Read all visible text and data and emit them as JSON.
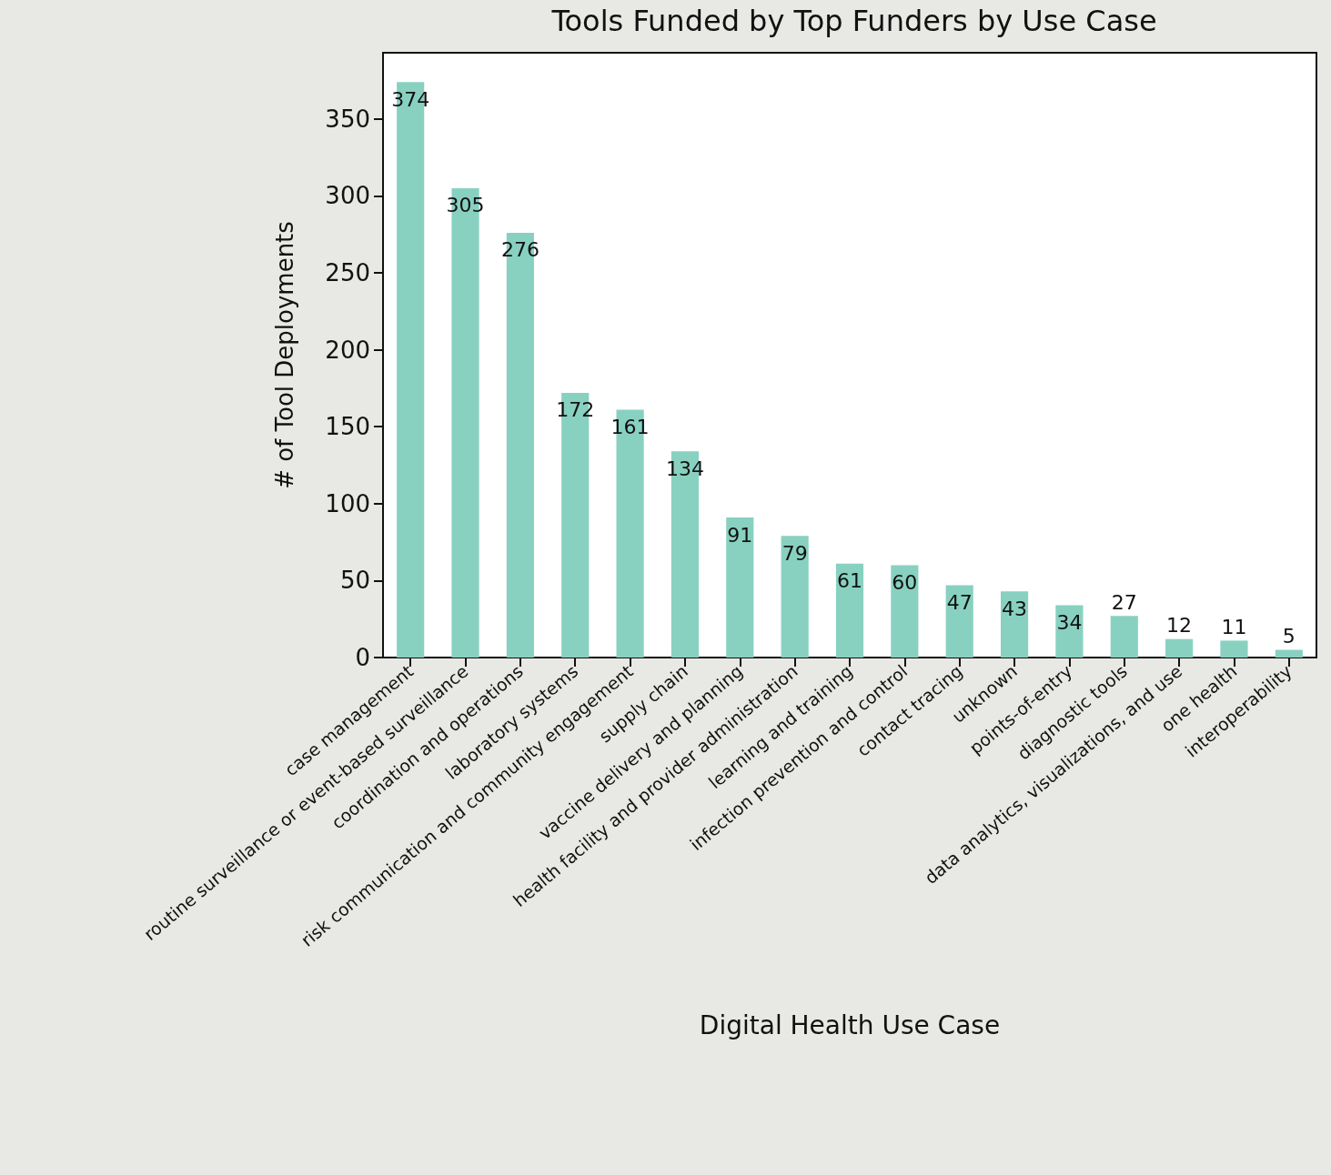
{
  "chart_data": {
    "type": "bar",
    "title": "Tools Funded by Top Funders by Use Case",
    "xlabel": "Digital Health Use Case",
    "ylabel": "# of Tool Deployments",
    "categories": [
      "case management",
      "routine surveillance or event-based surveillance",
      "coordination and operations",
      "laboratory systems",
      "risk communication and community engagement",
      "supply chain",
      "vaccine delivery and planning",
      "health facility and provider administration",
      "learning and training",
      "infection prevention and control",
      "contact tracing",
      "unknown",
      "points-of-entry",
      "diagnostic tools",
      "data analytics, visualizations, and use",
      "one health",
      "interoperability"
    ],
    "values": [
      374,
      305,
      276,
      172,
      161,
      134,
      91,
      79,
      61,
      60,
      47,
      43,
      34,
      27,
      12,
      11,
      5
    ],
    "color": "#88d1c0",
    "ylim": [
      0,
      393
    ],
    "yticks": [
      0,
      50,
      100,
      150,
      200,
      250,
      300,
      350
    ],
    "grid": false,
    "data_labels": true
  }
}
